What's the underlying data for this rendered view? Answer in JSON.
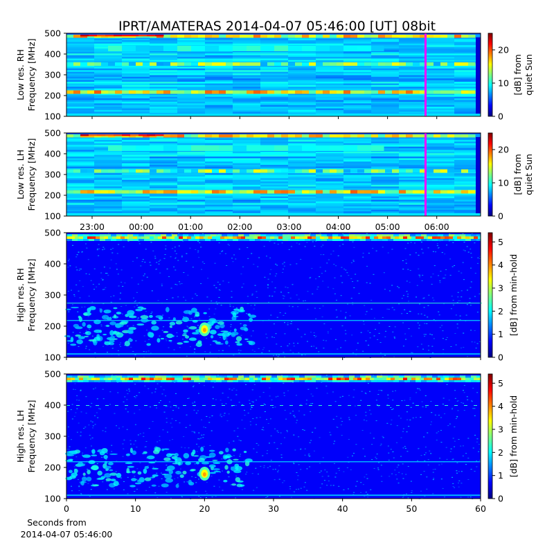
{
  "title": "IPRT/AMATERAS 2014-04-07 05:46:00 [UT]   08bit",
  "colormap": [
    "#00007f",
    "#0000ff",
    "#007fff",
    "#00ffff",
    "#7fff7f",
    "#ffff00",
    "#ff7f00",
    "#ff0000",
    "#7f0000"
  ],
  "marker_color": "#ff00ff",
  "chart_data": [
    {
      "type": "heatmap",
      "ylabel_line1": "Low res. RH",
      "ylabel_line2": "Frequency [MHz]",
      "ylim": [
        100,
        500
      ],
      "yticks": [
        "100",
        "200",
        "300",
        "400",
        "500"
      ],
      "x_axis": "time of day (UT), hourly ticks 23:00 to 06:00 on the previous day/observation day",
      "marker_time": "05:46",
      "colorbar": {
        "label_line1": "[dB] from",
        "label_line2": "quiet Sun",
        "range": [
          0,
          25
        ],
        "ticks": [
          "0",
          "10",
          "20"
        ]
      },
      "features": [
        {
          "freq_mhz": 215,
          "description": "strong persistent emission band"
        },
        {
          "freq_mhz": 350,
          "description": "narrow persistent band"
        },
        {
          "freq_mhz": 485,
          "description": "strong interference band at top"
        }
      ]
    },
    {
      "type": "heatmap",
      "ylabel_line1": "Low res. LH",
      "ylabel_line2": "Frequency [MHz]",
      "ylim": [
        100,
        500
      ],
      "yticks": [
        "100",
        "200",
        "300",
        "400",
        "500"
      ],
      "xticks": [
        "23:00",
        "00:00",
        "01:00",
        "02:00",
        "03:00",
        "04:00",
        "05:00",
        "06:00"
      ],
      "marker_time": "05:46",
      "colorbar": {
        "label_line1": "[dB] from",
        "label_line2": "quiet Sun",
        "range": [
          0,
          25
        ],
        "ticks": [
          "0",
          "10",
          "20"
        ]
      },
      "features": [
        {
          "freq_mhz": 215,
          "description": "strong persistent emission band"
        },
        {
          "freq_mhz": 315,
          "description": "persistent band"
        },
        {
          "freq_mhz": 485,
          "description": "strong interference band at top"
        }
      ]
    },
    {
      "type": "heatmap",
      "ylabel_line1": "High res. RH",
      "ylabel_line2": "Frequency [MHz]",
      "ylim": [
        100,
        500
      ],
      "yticks": [
        "100",
        "200",
        "300",
        "400",
        "500"
      ],
      "colorbar": {
        "label": "[dB] from min-hold",
        "range": [
          0,
          5.4
        ],
        "ticks": [
          "0",
          "1",
          "2",
          "3",
          "4",
          "5"
        ]
      },
      "features": [
        {
          "time_s": 20,
          "freq_mhz": 190,
          "description": "bright burst patch"
        },
        {
          "freq_mhz": 275,
          "description": "faint horizontal line"
        },
        {
          "freq_mhz": 485,
          "description": "strong interference band at top"
        }
      ]
    },
    {
      "type": "heatmap",
      "ylabel_line1": "High res. LH",
      "ylabel_line2": "Frequency [MHz]",
      "ylim": [
        100,
        500
      ],
      "yticks": [
        "100",
        "200",
        "300",
        "400",
        "500"
      ],
      "xlim": [
        0,
        60
      ],
      "xticks": [
        "0",
        "10",
        "20",
        "30",
        "40",
        "50",
        "60"
      ],
      "xlabel_line1": "Seconds from",
      "xlabel_line2": "2014-04-07 05:46:00",
      "colorbar": {
        "label": "[dB] from min-hold",
        "range": [
          0,
          5.4
        ],
        "ticks": [
          "0",
          "1",
          "2",
          "3",
          "4",
          "5"
        ]
      },
      "features": [
        {
          "time_s": 20,
          "freq_mhz": 180,
          "description": "bright burst patch"
        },
        {
          "freq_mhz": 400,
          "description": "dotted horizontal line"
        },
        {
          "freq_mhz": 485,
          "description": "strong interference band at top"
        }
      ]
    }
  ]
}
